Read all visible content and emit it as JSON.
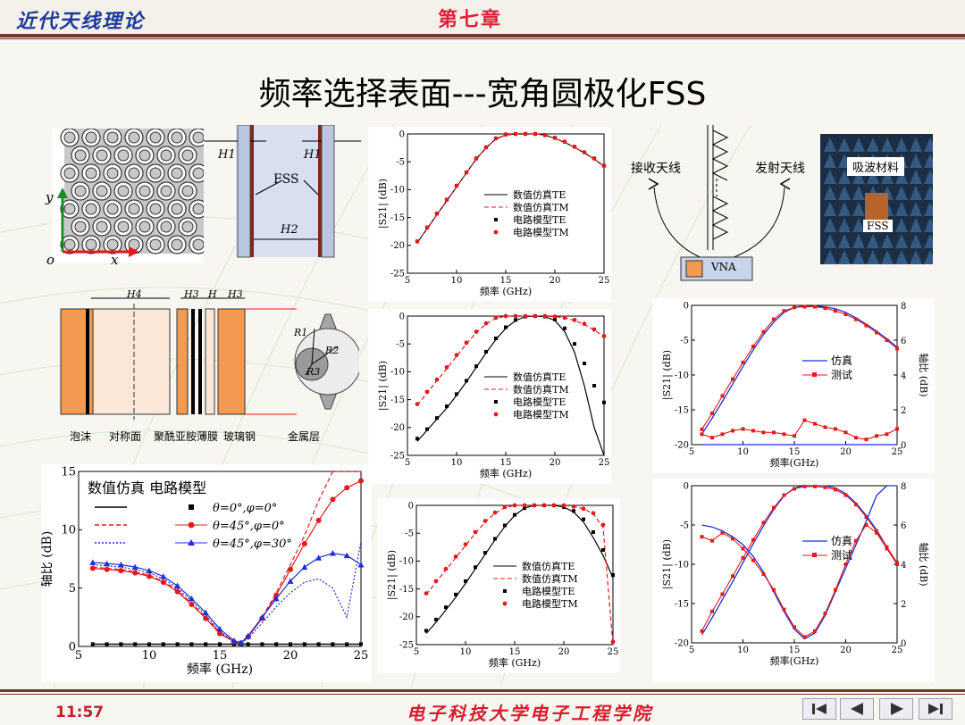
{
  "header": {
    "left_title": "近代天线理论",
    "chapter": "第七章"
  },
  "slide_title": "频率选择表面---宽角圆极化FSS",
  "footer": {
    "time": "11:57",
    "school": "电子科技大学电子工程学院"
  },
  "nav_buttons": [
    "first-icon",
    "prev-icon",
    "next-icon",
    "last-icon"
  ],
  "structure_labels": {
    "y": "y",
    "o": "o",
    "x": "x",
    "h1_left": "H1",
    "h1_right": "H1",
    "h2": "H2",
    "fss": "FSS",
    "h4": "H4",
    "h3": "H3",
    "h5": "H",
    "h3b": "H3",
    "r1": "R1",
    "r2": "R2",
    "r3": "R3",
    "foam": "泡沫",
    "sym_plane": "对称面",
    "pi_film": "聚酰亚胺薄膜",
    "fiberglass": "玻璃钢",
    "metal": "金属层"
  },
  "measurement": {
    "rx": "接收天线",
    "tx": "发射天线",
    "vna": "VNA",
    "absorber": "吸波材料",
    "fss": "FSS"
  },
  "colors": {
    "red": "#e31b1b",
    "blue": "#1f2fd4",
    "orange": "#f29a52",
    "brown": "#6b3a2a"
  },
  "chart_data": [
    {
      "id": "s21-top",
      "type": "line",
      "xlabel": "频率 (GHz)",
      "ylabel": "|S21| (dB)",
      "xlim": [
        5,
        25
      ],
      "ylim": [
        -25,
        0
      ],
      "xticks": [
        "5",
        "10",
        "15",
        "20",
        "25"
      ],
      "yticks": [
        "0",
        "-5",
        "-10",
        "-15",
        "-20",
        "-25"
      ],
      "legend": [
        "数值仿真TE",
        "数值仿真TM",
        "电路模型TE",
        "电路模型TM"
      ],
      "x": [
        6,
        7,
        8,
        9,
        10,
        11,
        12,
        13,
        14,
        15,
        16,
        17,
        18,
        19,
        20,
        21,
        22,
        23,
        24,
        25
      ],
      "series": [
        {
          "name": "数值仿真TE",
          "values": [
            -19.5,
            -17.0,
            -14.5,
            -12.0,
            -9.5,
            -7.0,
            -4.5,
            -2.5,
            -0.9,
            -0.2,
            0,
            0,
            0,
            -0.2,
            -0.8,
            -1.5,
            -2.4,
            -3.4,
            -4.5,
            -5.8
          ]
        },
        {
          "name": "数值仿真TM",
          "values": [
            -19.5,
            -17.0,
            -14.5,
            -12.0,
            -9.5,
            -7.0,
            -4.5,
            -2.5,
            -0.9,
            -0.2,
            0,
            0,
            0,
            -0.2,
            -0.8,
            -1.5,
            -2.4,
            -3.4,
            -4.5,
            -5.8
          ]
        },
        {
          "name": "电路模型TE",
          "values": [
            -19.3,
            -16.8,
            -14.3,
            -11.8,
            -9.3,
            -6.9,
            -4.4,
            -2.4,
            -0.8,
            -0.1,
            0,
            0,
            0,
            -0.2,
            -0.7,
            -1.4,
            -2.3,
            -3.3,
            -4.4,
            -5.7
          ]
        },
        {
          "name": "电路模型TM",
          "values": [
            -19.3,
            -16.8,
            -14.3,
            -11.8,
            -9.3,
            -6.9,
            -4.4,
            -2.4,
            -0.8,
            -0.1,
            0,
            0,
            0,
            -0.2,
            -0.7,
            -1.4,
            -2.3,
            -3.3,
            -4.4,
            -5.7
          ]
        }
      ]
    },
    {
      "id": "s21-mid",
      "type": "line",
      "xlabel": "频率 (GHz)",
      "ylabel": "|S21| (dB)",
      "xlim": [
        5,
        25
      ],
      "ylim": [
        -25,
        0
      ],
      "xticks": [
        "5",
        "10",
        "15",
        "20",
        "25"
      ],
      "yticks": [
        "0",
        "-5",
        "-10",
        "-15",
        "-20",
        "-25"
      ],
      "legend": [
        "数值仿真TE",
        "数值仿真TM",
        "电路模型TE",
        "电路模型TM"
      ],
      "x": [
        6,
        7,
        8,
        9,
        10,
        11,
        12,
        13,
        14,
        15,
        16,
        17,
        18,
        19,
        20,
        21,
        22,
        23,
        24,
        25
      ],
      "series": [
        {
          "name": "数值仿真TE",
          "values": [
            -22.5,
            -20.5,
            -18.5,
            -16.5,
            -14.2,
            -11.8,
            -9.2,
            -6.6,
            -4.2,
            -2.2,
            -0.8,
            -0.1,
            0,
            -0.1,
            -0.8,
            -2.8,
            -6.5,
            -12.5,
            -20.0,
            -25.0
          ]
        },
        {
          "name": "数值仿真TM",
          "values": [
            -16.0,
            -13.8,
            -11.6,
            -9.4,
            -7.2,
            -5.0,
            -3.0,
            -1.4,
            -0.4,
            0,
            0,
            0,
            0,
            0,
            -0.1,
            -0.3,
            -0.8,
            -1.5,
            -2.5,
            -3.7
          ]
        },
        {
          "name": "电路模型TE",
          "values": [
            -22.0,
            -20.3,
            -18.3,
            -16.2,
            -14.0,
            -11.6,
            -9.0,
            -6.4,
            -4.0,
            -2.0,
            -0.7,
            -0.1,
            0,
            -0.1,
            -0.6,
            -2.2,
            -5.0,
            -8.5,
            -12.5,
            -15.5
          ]
        },
        {
          "name": "电路模型TM",
          "values": [
            -15.8,
            -13.6,
            -11.4,
            -9.2,
            -7.0,
            -4.8,
            -2.8,
            -1.3,
            -0.3,
            0,
            0,
            0,
            0,
            0,
            -0.1,
            -0.3,
            -0.7,
            -1.4,
            -2.4,
            -3.6
          ]
        }
      ]
    },
    {
      "id": "s21-bottom",
      "type": "line",
      "xlabel": "频率 (GHz)",
      "ylabel": "|S21| (dB)",
      "xlim": [
        5,
        25
      ],
      "ylim": [
        -25,
        0
      ],
      "xticks": [
        "5",
        "10",
        "15",
        "20",
        "25"
      ],
      "yticks": [
        "0",
        "-5",
        "-10",
        "-15",
        "-20",
        "-25"
      ],
      "legend": [
        "数值仿真TE",
        "数值仿真TM",
        "电路模型TE",
        "电路模型TM"
      ],
      "x": [
        6,
        7,
        8,
        9,
        10,
        11,
        12,
        13,
        14,
        15,
        16,
        17,
        18,
        19,
        20,
        21,
        22,
        23,
        24,
        25
      ],
      "series": [
        {
          "name": "数值仿真TE",
          "values": [
            -23.0,
            -21.0,
            -18.8,
            -16.5,
            -14.0,
            -11.4,
            -8.8,
            -6.2,
            -3.8,
            -1.8,
            -0.5,
            0,
            0,
            0,
            -0.3,
            -1.2,
            -3.0,
            -5.8,
            -9.0,
            -13.0
          ]
        },
        {
          "name": "数值仿真TM",
          "values": [
            -16.0,
            -13.8,
            -11.6,
            -9.4,
            -7.2,
            -5.0,
            -3.0,
            -1.4,
            -0.4,
            0,
            0,
            0,
            0,
            0,
            0,
            -0.2,
            -0.6,
            -1.5,
            -4.0,
            -25.0
          ]
        },
        {
          "name": "电路模型TE",
          "values": [
            -22.5,
            -20.5,
            -18.3,
            -16.0,
            -13.6,
            -11.1,
            -8.5,
            -6.0,
            -3.6,
            -1.7,
            -0.5,
            0,
            0,
            0,
            -0.3,
            -1.0,
            -2.5,
            -4.8,
            -8.0,
            -12.5
          ]
        },
        {
          "name": "电路模型TM",
          "values": [
            -15.8,
            -13.6,
            -11.4,
            -9.2,
            -7.0,
            -4.8,
            -2.8,
            -1.3,
            -0.3,
            0,
            0,
            0,
            0,
            0,
            0,
            -0.2,
            -0.6,
            -1.4,
            -3.5,
            -24.5
          ]
        }
      ]
    },
    {
      "id": "axial-ratio",
      "type": "line",
      "title": "数值仿真  电路模型",
      "xlabel": "频率 (GHz)",
      "ylabel": "轴比 (dB)",
      "xlim": [
        5,
        25
      ],
      "ylim": [
        0,
        15
      ],
      "xticks": [
        "5",
        "10",
        "15",
        "20",
        "25"
      ],
      "yticks": [
        "0",
        "5",
        "10",
        "15"
      ],
      "legend": [
        "θ=0°,φ=0°",
        "θ=45°,φ=0°",
        "θ=45°,φ=30°"
      ],
      "x": [
        6,
        7,
        8,
        9,
        10,
        11,
        12,
        13,
        14,
        15,
        16,
        16.5,
        17,
        18,
        19,
        20,
        21,
        22,
        23,
        24,
        25
      ],
      "series": [
        {
          "name": "θ=0°,φ=0° 数值仿真",
          "values": [
            0.2,
            0.2,
            0.2,
            0.2,
            0.2,
            0.2,
            0.2,
            0.2,
            0.2,
            0.2,
            0.2,
            0.2,
            0.2,
            0.2,
            0.2,
            0.2,
            0.2,
            0.2,
            0.2,
            0.2,
            0.2
          ]
        },
        {
          "name": "θ=0°,φ=0° 电路模型",
          "values": [
            0.2,
            0.2,
            0.2,
            0.2,
            0.2,
            0.2,
            0.2,
            0.2,
            0.2,
            0.2,
            0.2,
            0.2,
            0.2,
            0.2,
            0.2,
            0.2,
            0.2,
            0.2,
            0.2,
            0.2,
            0.2
          ]
        },
        {
          "name": "θ=45°,φ=0° 数值仿真",
          "values": [
            6.8,
            6.7,
            6.6,
            6.4,
            6.1,
            5.6,
            4.8,
            3.7,
            2.5,
            1.2,
            0.4,
            0.3,
            0.8,
            2.5,
            4.6,
            7.0,
            9.5,
            12.5,
            15.0,
            15.0,
            15.0
          ]
        },
        {
          "name": "θ=45°,φ=0° 电路模型",
          "values": [
            6.7,
            6.6,
            6.5,
            6.3,
            6.0,
            5.5,
            4.7,
            3.6,
            2.4,
            1.1,
            0.4,
            0.3,
            0.8,
            2.4,
            4.4,
            6.6,
            8.8,
            10.8,
            12.6,
            13.6,
            14.2
          ]
        },
        {
          "name": "θ=45°,φ=30° 数值仿真",
          "values": [
            7.0,
            6.9,
            6.8,
            6.6,
            6.3,
            5.8,
            5.0,
            3.9,
            2.7,
            1.3,
            0.4,
            0.3,
            0.7,
            2.0,
            3.4,
            4.6,
            5.5,
            5.8,
            5.0,
            2.5,
            9.0
          ]
        },
        {
          "name": "θ=45°,φ=30° 电路模型",
          "values": [
            7.2,
            7.1,
            7.0,
            6.8,
            6.5,
            6.0,
            5.2,
            4.1,
            2.9,
            1.5,
            0.5,
            0.3,
            0.9,
            2.5,
            4.1,
            5.6,
            6.8,
            7.6,
            8.0,
            7.8,
            7.0
          ]
        }
      ]
    },
    {
      "id": "meas-1",
      "type": "line",
      "xlabel": "频率(GHz)",
      "ylabel": "|S21| (dB)",
      "y2label": "轴比 (dB)",
      "xlim": [
        5,
        25
      ],
      "ylim": [
        -20,
        0
      ],
      "y2lim": [
        0,
        8
      ],
      "xticks": [
        "5",
        "10",
        "15",
        "20",
        "25"
      ],
      "yticks": [
        "0",
        "-5",
        "-10",
        "-15",
        "-20"
      ],
      "y2ticks": [
        "0",
        "2",
        "4",
        "6",
        "8"
      ],
      "legend": [
        "仿真",
        "测试"
      ],
      "x": [
        6,
        7,
        8,
        9,
        10,
        11,
        12,
        13,
        14,
        15,
        16,
        17,
        18,
        19,
        20,
        21,
        22,
        23,
        24,
        25
      ],
      "series": [
        {
          "name": "仿真 S21",
          "values": [
            -18.5,
            -16.2,
            -13.8,
            -11.3,
            -8.8,
            -6.4,
            -4.2,
            -2.4,
            -1.0,
            -0.3,
            -0.1,
            -0.1,
            -0.2,
            -0.5,
            -1.0,
            -1.8,
            -2.7,
            -3.7,
            -4.8,
            -6.0
          ]
        },
        {
          "name": "测试 S21",
          "values": [
            -17.8,
            -15.5,
            -13.0,
            -10.6,
            -8.2,
            -5.9,
            -3.8,
            -2.0,
            -0.8,
            -0.3,
            -0.2,
            -0.2,
            -0.4,
            -0.8,
            -1.3,
            -2.0,
            -2.9,
            -3.9,
            -5.0,
            -6.2
          ]
        },
        {
          "name": "仿真 轴比",
          "values": [
            0,
            0,
            0,
            0,
            0,
            0,
            0,
            0,
            0,
            0,
            0,
            0,
            0,
            0,
            0,
            0,
            0,
            0,
            0,
            0
          ]
        },
        {
          "name": "测试 轴比",
          "values": [
            0.6,
            0.4,
            0.6,
            0.8,
            0.9,
            0.8,
            0.7,
            0.7,
            0.6,
            0.5,
            1.4,
            1.2,
            1.0,
            0.9,
            0.7,
            0.4,
            0.3,
            0.5,
            0.6,
            0.9
          ]
        }
      ]
    },
    {
      "id": "meas-2",
      "type": "line",
      "xlabel": "频率(GHz)",
      "ylabel": "|S21| (dB)",
      "y2label": "轴比 (dB)",
      "xlim": [
        5,
        25
      ],
      "ylim": [
        -20,
        0
      ],
      "y2lim": [
        0,
        8
      ],
      "xticks": [
        "5",
        "10",
        "15",
        "20",
        "25"
      ],
      "yticks": [
        "0",
        "-5",
        "-10",
        "-15",
        "-20"
      ],
      "y2ticks": [
        "0",
        "2",
        "4",
        "6",
        "8"
      ],
      "legend": [
        "仿真",
        "测试"
      ],
      "x": [
        6,
        7,
        8,
        9,
        10,
        11,
        12,
        13,
        14,
        15,
        16,
        17,
        18,
        19,
        20,
        21,
        22,
        23,
        24,
        25
      ],
      "series": [
        {
          "name": "仿真 S21",
          "values": [
            -19.0,
            -16.8,
            -14.5,
            -12.2,
            -9.8,
            -7.4,
            -5.1,
            -3.0,
            -1.3,
            -0.3,
            0,
            0,
            0,
            -0.3,
            -1.0,
            -2.2,
            -3.8,
            -5.6,
            -7.8,
            -10.0
          ]
        },
        {
          "name": "测试 S21",
          "values": [
            -18.5,
            -16.0,
            -13.8,
            -11.5,
            -9.2,
            -6.9,
            -4.7,
            -2.8,
            -1.2,
            -0.4,
            -0.1,
            -0.1,
            -0.2,
            -0.5,
            -1.2,
            -2.4,
            -4.0,
            -5.8,
            -7.8,
            -9.8
          ]
        },
        {
          "name": "仿真 轴比",
          "values": [
            6.0,
            5.9,
            5.7,
            5.4,
            5.0,
            4.4,
            3.6,
            2.6,
            1.6,
            0.7,
            0.2,
            0.5,
            1.4,
            2.6,
            3.8,
            5.0,
            6.2,
            7.5,
            8.0,
            8.0
          ]
        },
        {
          "name": "测试 轴比",
          "values": [
            5.4,
            5.2,
            5.6,
            5.3,
            4.8,
            4.2,
            3.5,
            2.7,
            1.7,
            0.8,
            0.3,
            0.6,
            1.5,
            2.7,
            4.0,
            5.2,
            6.0,
            5.6,
            4.8,
            4.0
          ]
        }
      ]
    }
  ]
}
